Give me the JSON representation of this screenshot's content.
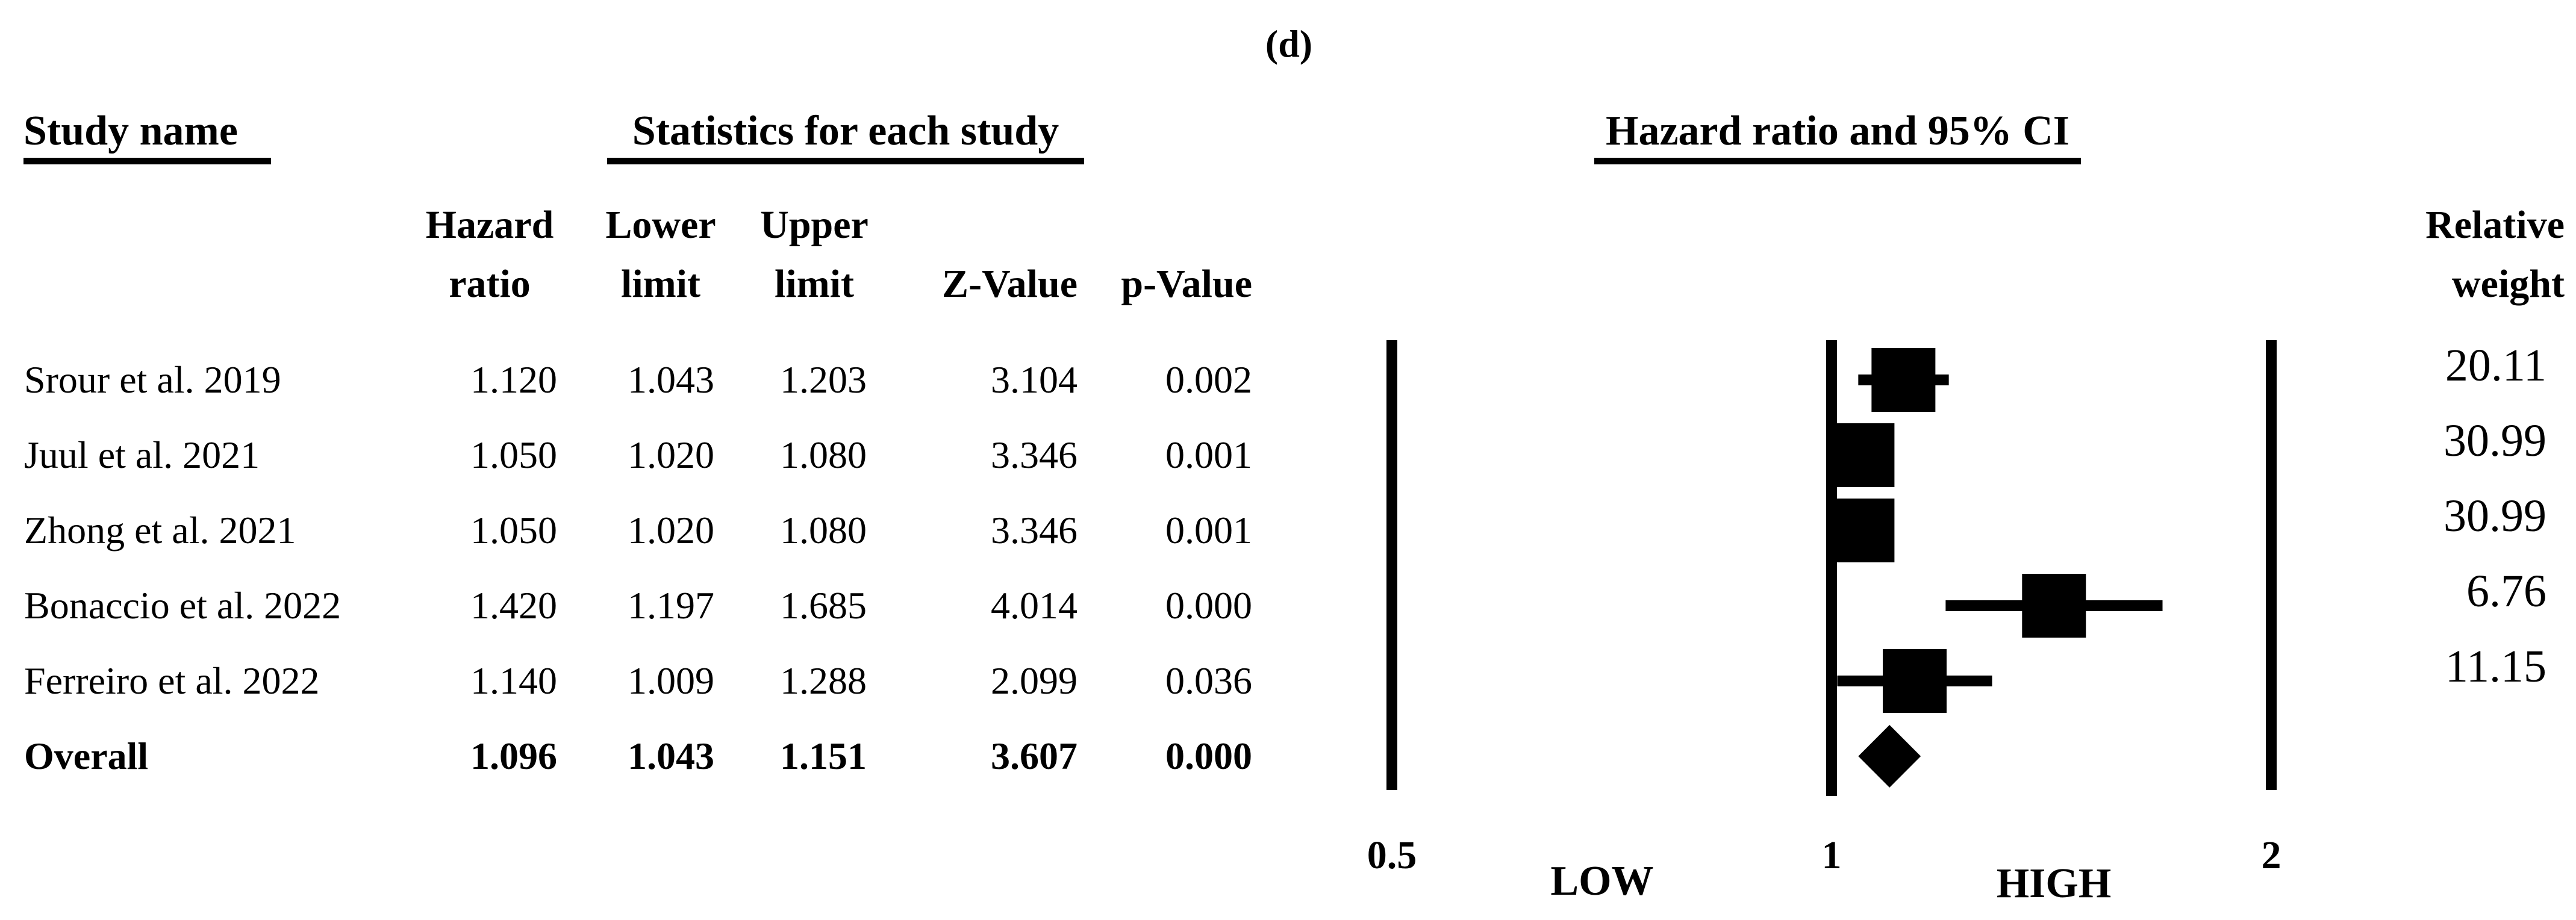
{
  "panel_label": "(d)",
  "headers": {
    "study": "Study name",
    "statistics": "Statistics for each study",
    "plot": "Hazard ratio and 95% CI",
    "weight_line1": "Relative",
    "weight_line2": "weight",
    "col_hazard_1": "Hazard",
    "col_hazard_2": "ratio",
    "col_lower_1": "Lower",
    "col_lower_2": "limit",
    "col_upper_1": "Upper",
    "col_upper_2": "limit",
    "col_z": "Z-Value",
    "col_p": "p-Value"
  },
  "chart_data": {
    "type": "forest",
    "title": "Hazard ratio and 95% CI",
    "x_scale": "log",
    "x_ticks": [
      "0.5",
      "1",
      "2"
    ],
    "region_labels": {
      "left": "LOW",
      "right": "HIGH"
    },
    "columns": [
      "Hazard ratio",
      "Lower limit",
      "Upper limit",
      "Z-Value",
      "p-Value",
      "Relative weight"
    ],
    "studies": [
      {
        "name": "Srour et al. 2019",
        "hazard_ratio": "1.120",
        "lower_limit": "1.043",
        "upper_limit": "1.203",
        "z_value": "3.104",
        "p_value": "0.002",
        "relative_weight": "20.11"
      },
      {
        "name": "Juul et al. 2021",
        "hazard_ratio": "1.050",
        "lower_limit": "1.020",
        "upper_limit": "1.080",
        "z_value": "3.346",
        "p_value": "0.001",
        "relative_weight": "30.99"
      },
      {
        "name": "Zhong et al. 2021",
        "hazard_ratio": "1.050",
        "lower_limit": "1.020",
        "upper_limit": "1.080",
        "z_value": "3.346",
        "p_value": "0.001",
        "relative_weight": "30.99"
      },
      {
        "name": "Bonaccio et al. 2022",
        "hazard_ratio": "1.420",
        "lower_limit": "1.197",
        "upper_limit": "1.685",
        "z_value": "4.014",
        "p_value": "0.000",
        "relative_weight": "6.76"
      },
      {
        "name": "Ferreiro et al. 2022",
        "hazard_ratio": "1.140",
        "lower_limit": "1.009",
        "upper_limit": "1.288",
        "z_value": "2.099",
        "p_value": "0.036",
        "relative_weight": "11.15"
      }
    ],
    "overall": {
      "name": "Overall",
      "hazard_ratio": "1.096",
      "lower_limit": "1.043",
      "upper_limit": "1.151",
      "z_value": "3.607",
      "p_value": "0.000"
    }
  }
}
